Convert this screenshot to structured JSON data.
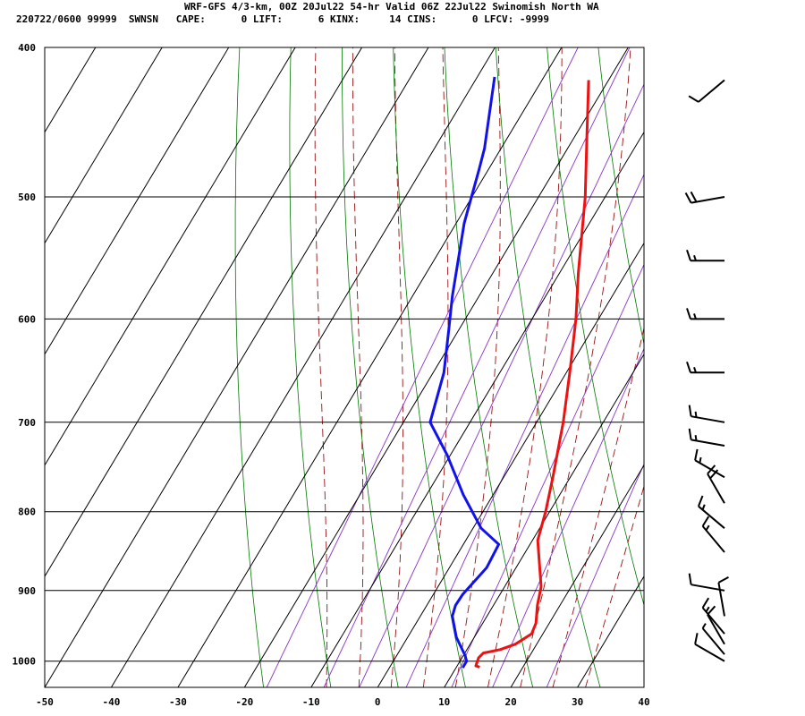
{
  "header": {
    "line1": "WRF-GFS 4/3-km, 00Z 20Jul22 54-hr Valid 06Z 22Jul22 Swinomish North WA",
    "line2": "220722/0600 99999  SWNSN   CAPE:      0 LIFT:      6 KINX:     14 CINS:      0 LFCV: -9999"
  },
  "chart_data": {
    "type": "skew-t",
    "title": "WRF-GFS 4/3-km, 00Z 20Jul22 54-hr Valid 06Z 22Jul22 Swinomish North WA",
    "x_ticks": [
      -50,
      -40,
      -30,
      -20,
      -10,
      0,
      10,
      20,
      30,
      40
    ],
    "p_ticks": [
      400,
      500,
      600,
      700,
      800,
      900,
      1000
    ],
    "xlim": [
      -50,
      40
    ],
    "plim": [
      1040,
      400
    ],
    "temperature": [
      {
        "p": 1009,
        "t": 13.5
      },
      {
        "p": 1007,
        "t": 12.8
      },
      {
        "p": 995,
        "t": 12.5
      },
      {
        "p": 988,
        "t": 12.8
      },
      {
        "p": 983,
        "t": 15.0
      },
      {
        "p": 975,
        "t": 16.8
      },
      {
        "p": 960,
        "t": 18.3
      },
      {
        "p": 945,
        "t": 18.0
      },
      {
        "p": 920,
        "t": 16.6
      },
      {
        "p": 895,
        "t": 15.5
      },
      {
        "p": 860,
        "t": 12.8
      },
      {
        "p": 835,
        "t": 10.8
      },
      {
        "p": 800,
        "t": 9.4
      },
      {
        "p": 760,
        "t": 7.4
      },
      {
        "p": 700,
        "t": 4.0
      },
      {
        "p": 650,
        "t": 0.5
      },
      {
        "p": 600,
        "t": -3.4
      },
      {
        "p": 560,
        "t": -7.2
      },
      {
        "p": 500,
        "t": -13.0
      },
      {
        "p": 460,
        "t": -17.8
      },
      {
        "p": 420,
        "t": -23.0
      }
    ],
    "dewpoint": [
      {
        "p": 1010,
        "t": 11.0
      },
      {
        "p": 1000,
        "t": 11.0
      },
      {
        "p": 992,
        "t": 10.3
      },
      {
        "p": 965,
        "t": 7.3
      },
      {
        "p": 935,
        "t": 4.8
      },
      {
        "p": 920,
        "t": 4.3
      },
      {
        "p": 905,
        "t": 4.4
      },
      {
        "p": 870,
        "t": 5.6
      },
      {
        "p": 840,
        "t": 5.3
      },
      {
        "p": 820,
        "t": 1.2
      },
      {
        "p": 780,
        "t": -4.5
      },
      {
        "p": 735,
        "t": -10.5
      },
      {
        "p": 700,
        "t": -16.0
      },
      {
        "p": 650,
        "t": -18.4
      },
      {
        "p": 610,
        "t": -21.5
      },
      {
        "p": 580,
        "t": -24.0
      },
      {
        "p": 520,
        "t": -28.8
      },
      {
        "p": 480,
        "t": -31.4
      },
      {
        "p": 465,
        "t": -32.5
      },
      {
        "p": 418,
        "t": -37.4
      }
    ],
    "dry_adiabats_theta_c": [
      -20,
      -10,
      0,
      10,
      20,
      30,
      40,
      50,
      60,
      70,
      80,
      90,
      100
    ],
    "mixing_ratio_lines_gkg": [
      1,
      2,
      3,
      5,
      8,
      12,
      20
    ],
    "moist_adiabats_thetaw_c": [
      -10,
      -5,
      0,
      5,
      10,
      15,
      20,
      25,
      30
    ],
    "wind_barbs": [
      {
        "p": 1000,
        "dir": 300,
        "kt": 10
      },
      {
        "p": 990,
        "dir": 320,
        "kt": 5
      },
      {
        "p": 975,
        "dir": 330,
        "kt": 10
      },
      {
        "p": 960,
        "dir": 320,
        "kt": 15
      },
      {
        "p": 935,
        "dir": 350,
        "kt": 10
      },
      {
        "p": 900,
        "dir": 280,
        "kt": 10
      },
      {
        "p": 850,
        "dir": 320,
        "kt": 15
      },
      {
        "p": 820,
        "dir": 310,
        "kt": 15
      },
      {
        "p": 790,
        "dir": 330,
        "kt": 20
      },
      {
        "p": 760,
        "dir": 300,
        "kt": 15
      },
      {
        "p": 725,
        "dir": 280,
        "kt": 15
      },
      {
        "p": 700,
        "dir": 280,
        "kt": 15
      },
      {
        "p": 650,
        "dir": 270,
        "kt": 15
      },
      {
        "p": 600,
        "dir": 270,
        "kt": 15
      },
      {
        "p": 550,
        "dir": 270,
        "kt": 15
      },
      {
        "p": 500,
        "dir": 260,
        "kt": 20
      },
      {
        "p": 420,
        "dir": 230,
        "kt": 10
      }
    ],
    "colors": {
      "temperature": "#ee1111",
      "dewpoint": "#1111ee",
      "isotherm": "#000000",
      "dry_adiabat": "#007700",
      "moist_adiabat": "#991111",
      "mixing_ratio": "#8833cc",
      "barb": "#000000"
    }
  }
}
